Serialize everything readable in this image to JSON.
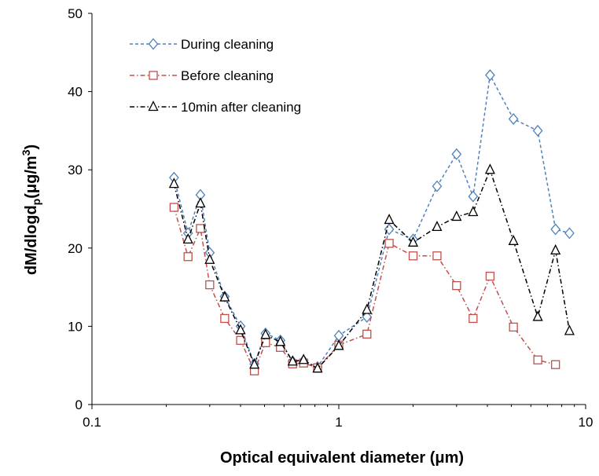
{
  "chart_data": {
    "type": "line",
    "xscale": "log",
    "xlim": [
      0.1,
      10
    ],
    "ylim": [
      0,
      50
    ],
    "xticks": [
      0.1,
      1,
      10
    ],
    "xtick_labels": [
      "0.1",
      "1",
      "10"
    ],
    "yticks": [
      0,
      10,
      20,
      30,
      40,
      50
    ],
    "ytick_labels": [
      "0",
      "10",
      "20",
      "30",
      "40",
      "50"
    ],
    "xlabel": "Optical equivalent diameter (μm)",
    "ylabel": {
      "main": "dM/dlogd",
      "sub": "p",
      "unit_open": "(μg/m",
      "sup": "3",
      "unit_close": ")"
    },
    "grid": false,
    "legend_position": "top-left",
    "series": [
      {
        "name": "During cleaning",
        "color": "#4f81bd",
        "marker": "diamond",
        "dash": "dashed",
        "points": [
          [
            0.215,
            29
          ],
          [
            0.245,
            21.9
          ],
          [
            0.275,
            26.8
          ],
          [
            0.3,
            19.4
          ],
          [
            0.345,
            13.8
          ],
          [
            0.4,
            10
          ],
          [
            0.455,
            5.2
          ],
          [
            0.505,
            9.1
          ],
          [
            0.58,
            8.2
          ],
          [
            0.65,
            5.5
          ],
          [
            0.72,
            5.6
          ],
          [
            0.82,
            4.8
          ],
          [
            1.0,
            8.8
          ],
          [
            1.3,
            11.2
          ],
          [
            1.6,
            22.4
          ],
          [
            2.0,
            21.1
          ],
          [
            2.5,
            27.9
          ],
          [
            3.0,
            32
          ],
          [
            3.5,
            26.6
          ],
          [
            4.1,
            42.1
          ],
          [
            5.1,
            36.5
          ],
          [
            6.4,
            35
          ],
          [
            7.55,
            22.4
          ],
          [
            8.6,
            21.9
          ]
        ]
      },
      {
        "name": "Before cleaning",
        "color": "#c0504d",
        "marker": "square",
        "dash": "dashdot",
        "points": [
          [
            0.215,
            25.2
          ],
          [
            0.245,
            18.9
          ],
          [
            0.275,
            22.5
          ],
          [
            0.3,
            15.3
          ],
          [
            0.345,
            11
          ],
          [
            0.4,
            8.2
          ],
          [
            0.455,
            4.3
          ],
          [
            0.505,
            7.9
          ],
          [
            0.58,
            7.3
          ],
          [
            0.65,
            5.2
          ],
          [
            0.72,
            5.3
          ],
          [
            0.82,
            4.7
          ],
          [
            1.0,
            7.6
          ],
          [
            1.3,
            9
          ],
          [
            1.6,
            20.6
          ],
          [
            2.0,
            19
          ],
          [
            2.5,
            19
          ],
          [
            3.0,
            15.2
          ],
          [
            3.5,
            11
          ],
          [
            4.1,
            16.4
          ],
          [
            5.1,
            9.9
          ],
          [
            6.4,
            5.7
          ],
          [
            7.55,
            5.1
          ]
        ]
      },
      {
        "name": "10min after cleaning",
        "color": "#000000",
        "marker": "triangle",
        "dash": "dashdot",
        "points": [
          [
            0.215,
            28.2
          ],
          [
            0.245,
            21.1
          ],
          [
            0.275,
            25.7
          ],
          [
            0.3,
            18.5
          ],
          [
            0.345,
            13.7
          ],
          [
            0.4,
            9.5
          ],
          [
            0.455,
            5.1
          ],
          [
            0.505,
            8.9
          ],
          [
            0.58,
            8
          ],
          [
            0.65,
            5.5
          ],
          [
            0.72,
            5.7
          ],
          [
            0.82,
            4.6
          ],
          [
            1.0,
            7.5
          ],
          [
            1.3,
            12.1
          ],
          [
            1.6,
            23.6
          ],
          [
            2.0,
            20.7
          ],
          [
            2.5,
            22.7
          ],
          [
            3.0,
            24
          ],
          [
            3.5,
            24.6
          ],
          [
            4.1,
            30
          ],
          [
            5.1,
            20.9
          ],
          [
            6.4,
            11.2
          ],
          [
            7.55,
            19.7
          ],
          [
            8.6,
            9.4
          ]
        ]
      }
    ]
  }
}
